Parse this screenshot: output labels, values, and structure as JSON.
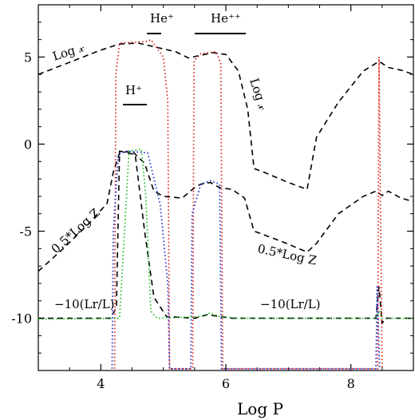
{
  "chart_data": {
    "type": "line",
    "title": "",
    "xlabel": "Log P",
    "ylabel": "",
    "xlim": [
      3.0,
      9.0
    ],
    "ylim": [
      -13.0,
      8.0
    ],
    "grid": false,
    "x_ticks": [
      4,
      6,
      8
    ],
    "y_ticks": [
      5,
      0,
      -5,
      -10
    ],
    "x_tick_labels": [
      "4",
      "6",
      "8"
    ],
    "y_tick_labels": [
      "5",
      "0",
      "-5",
      "-10"
    ],
    "series": [
      {
        "color": "#000000",
        "dash": "dashed",
        "points": [
          [
            3.0,
            4.0
          ],
          [
            3.5,
            4.7
          ],
          [
            4.0,
            5.4
          ],
          [
            4.3,
            5.75
          ],
          [
            4.6,
            5.8
          ],
          [
            4.9,
            5.55
          ],
          [
            5.2,
            5.3
          ],
          [
            5.4,
            4.95
          ],
          [
            5.6,
            5.1
          ],
          [
            5.8,
            5.25
          ],
          [
            6.0,
            5.15
          ],
          [
            6.2,
            4.2
          ],
          [
            6.35,
            2.0
          ],
          [
            6.45,
            -1.4
          ],
          [
            6.6,
            -1.6
          ],
          [
            7.0,
            -2.2
          ],
          [
            7.3,
            -2.6
          ],
          [
            7.45,
            0.4
          ],
          [
            7.8,
            2.4
          ],
          [
            8.2,
            4.2
          ],
          [
            8.45,
            4.75
          ],
          [
            8.6,
            4.4
          ],
          [
            8.8,
            4.25
          ],
          [
            9.0,
            4.0
          ]
        ]
      },
      {
        "color": "#000000",
        "dash": "dashed",
        "points": [
          [
            3.0,
            -7.3
          ],
          [
            3.4,
            -6.0
          ],
          [
            3.8,
            -4.6
          ],
          [
            4.1,
            -3.4
          ],
          [
            4.2,
            -1.6
          ],
          [
            4.3,
            -0.5
          ],
          [
            4.5,
            -0.4
          ],
          [
            4.7,
            -1.1
          ],
          [
            4.85,
            -2.7
          ],
          [
            5.0,
            -3.0
          ],
          [
            5.3,
            -3.1
          ],
          [
            5.5,
            -2.5
          ],
          [
            5.6,
            -2.3
          ],
          [
            5.75,
            -2.2
          ],
          [
            5.9,
            -2.5
          ],
          [
            6.1,
            -2.6
          ],
          [
            6.3,
            -3.1
          ],
          [
            6.45,
            -5.0
          ],
          [
            6.9,
            -5.6
          ],
          [
            7.3,
            -6.2
          ],
          [
            7.45,
            -5.7
          ],
          [
            7.8,
            -4.0
          ],
          [
            8.2,
            -3.0
          ],
          [
            8.4,
            -2.7
          ],
          [
            8.5,
            -2.95
          ],
          [
            8.6,
            -2.7
          ],
          [
            8.8,
            -3.1
          ],
          [
            9.0,
            -3.3
          ]
        ]
      },
      {
        "color": "#000000",
        "dash": "dashed",
        "points": [
          [
            3.0,
            -10.0
          ],
          [
            4.15,
            -10.0
          ],
          [
            4.25,
            -9.4
          ],
          [
            4.3,
            -0.4
          ],
          [
            4.55,
            -0.6
          ],
          [
            4.7,
            -5.0
          ],
          [
            4.85,
            -8.8
          ],
          [
            5.05,
            -9.9
          ],
          [
            5.5,
            -10.0
          ],
          [
            5.7,
            -9.8
          ],
          [
            5.9,
            -9.9
          ],
          [
            6.1,
            -10.0
          ],
          [
            8.4,
            -10.0
          ],
          [
            8.45,
            -8.2
          ],
          [
            8.5,
            -10.3
          ],
          [
            8.55,
            -10.0
          ],
          [
            9.0,
            -10.0
          ]
        ]
      },
      {
        "color": "#e02020",
        "dash": "dotted",
        "points": [
          [
            4.22,
            -12.9
          ],
          [
            4.24,
            4.0
          ],
          [
            4.3,
            5.8
          ],
          [
            4.75,
            5.9
          ],
          [
            4.8,
            6.0
          ],
          [
            5.0,
            5.0
          ],
          [
            5.07,
            2.5
          ],
          [
            5.1,
            -12.9
          ],
          [
            5.47,
            -12.9
          ],
          [
            5.49,
            4.8
          ],
          [
            5.6,
            5.2
          ],
          [
            5.85,
            5.3
          ],
          [
            5.92,
            4.6
          ],
          [
            5.95,
            -12.9
          ],
          [
            8.43,
            -12.9
          ],
          [
            8.45,
            5.0
          ],
          [
            8.5,
            -12.9
          ]
        ]
      },
      {
        "color": "#2030d0",
        "dash": "dotted",
        "points": [
          [
            4.18,
            -12.9
          ],
          [
            4.2,
            -5.0
          ],
          [
            4.28,
            -0.6
          ],
          [
            4.4,
            -0.4
          ],
          [
            4.75,
            -0.5
          ],
          [
            4.95,
            -3.5
          ],
          [
            5.07,
            -8.0
          ],
          [
            5.1,
            -12.9
          ],
          [
            5.44,
            -12.9
          ],
          [
            5.46,
            -4.0
          ],
          [
            5.6,
            -2.3
          ],
          [
            5.75,
            -2.1
          ],
          [
            5.9,
            -2.3
          ],
          [
            5.93,
            -12.9
          ],
          [
            8.4,
            -12.9
          ],
          [
            8.42,
            -8.2
          ],
          [
            8.46,
            -12.9
          ]
        ]
      },
      {
        "color": "#20c020",
        "dash": "dotted",
        "points": [
          [
            3.0,
            -10.05
          ],
          [
            4.3,
            -10.0
          ],
          [
            4.38,
            -5.0
          ],
          [
            4.45,
            -0.4
          ],
          [
            4.65,
            -0.3
          ],
          [
            4.72,
            -3.0
          ],
          [
            4.8,
            -9.6
          ],
          [
            4.9,
            -10.0
          ],
          [
            5.6,
            -9.9
          ],
          [
            5.75,
            -9.7
          ],
          [
            5.9,
            -9.9
          ],
          [
            6.2,
            -10.0
          ],
          [
            8.4,
            -10.0
          ],
          [
            8.45,
            -9.6
          ],
          [
            8.5,
            -10.0
          ],
          [
            9.0,
            -10.0
          ]
        ]
      }
    ],
    "annotations": [
      {
        "id": "log-x-top-left",
        "text": "Log 𝓍"
      },
      {
        "id": "log-x-right",
        "text": "Log 𝓍"
      },
      {
        "id": "he-plus",
        "text": "He⁺"
      },
      {
        "id": "he-plusplus",
        "text": "He⁺⁺"
      },
      {
        "id": "h-plus",
        "text": "H⁺"
      },
      {
        "id": "half-log-z-left",
        "text": "0.5*Log Z"
      },
      {
        "id": "half-log-z-right",
        "text": "0.5*Log Z"
      },
      {
        "id": "lr-left",
        "text": "−10(Lr/L)"
      },
      {
        "id": "lr-right",
        "text": "−10(Lr/L)"
      }
    ]
  }
}
